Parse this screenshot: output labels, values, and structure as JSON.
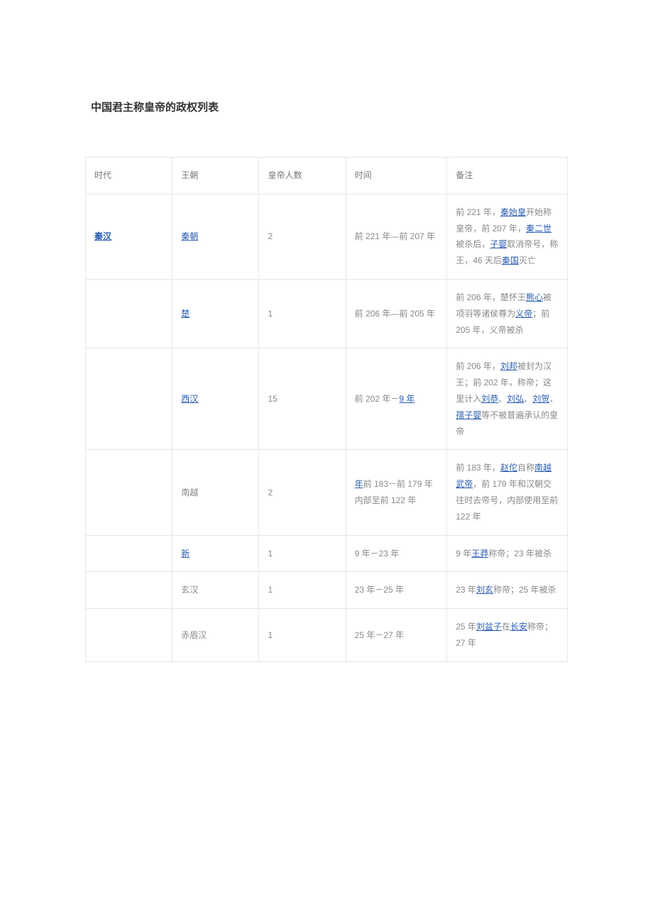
{
  "title": "中国君主称皇帝的政权列表",
  "headers": {
    "era": "时代",
    "dynasty": "王朝",
    "count": "皇帝人数",
    "time": "时间",
    "notes": "备注"
  },
  "rows": [
    {
      "era_link": "秦汉",
      "dynasty_link": "秦朝",
      "count": "2",
      "time_parts": [
        {
          "t": "前 221 年—前 207 年"
        }
      ],
      "notes_parts": [
        {
          "t": "前 221 年，"
        },
        {
          "l": "秦始皇"
        },
        {
          "t": "开始称皇帝，前 207 年，"
        },
        {
          "l": "秦二世"
        },
        {
          "t": "被杀后，"
        },
        {
          "l": "子婴"
        },
        {
          "t": "取消帝号，称王，46 天后"
        },
        {
          "l": "秦国"
        },
        {
          "t": "灭亡"
        }
      ]
    },
    {
      "era_link": "",
      "dynasty_link": "楚",
      "count": "1",
      "time_parts": [
        {
          "t": "前 206 年—前 205 年"
        }
      ],
      "notes_parts": [
        {
          "t": "前 206 年，楚怀王"
        },
        {
          "l": "熊心"
        },
        {
          "t": "被项羽等诸侯尊为"
        },
        {
          "l": "义帝"
        },
        {
          "t": "；前 205 年，义帝被杀"
        }
      ]
    },
    {
      "era_link": "",
      "dynasty_link": "西汉",
      "count": "15",
      "time_parts": [
        {
          "t": "前 202 年－"
        },
        {
          "l": "9 年"
        }
      ],
      "notes_parts": [
        {
          "t": "前 206 年，"
        },
        {
          "l": "刘邦"
        },
        {
          "t": "被封为汉王；前 202 年，称帝；这里计入"
        },
        {
          "l": "刘恭"
        },
        {
          "t": "、"
        },
        {
          "l": "刘弘"
        },
        {
          "t": "、"
        },
        {
          "l": "刘贺"
        },
        {
          "t": "、"
        },
        {
          "l": "孺子婴"
        },
        {
          "t": "等不被普遍承认的皇帝"
        }
      ]
    },
    {
      "era_link": "",
      "dynasty_plain": "南越",
      "count": "2",
      "time_parts": [
        {
          "l": "年"
        },
        {
          "t": "前 183－前 179 年"
        },
        {
          "br": true
        },
        {
          "t": "内部至前 122 年"
        }
      ],
      "notes_parts": [
        {
          "t": "前 183 年，"
        },
        {
          "l": "赵佗"
        },
        {
          "t": "自称"
        },
        {
          "l": "南越武帝"
        },
        {
          "t": "，前 179 年和汉朝交往时去帝号，内部使用至前 122 年"
        }
      ]
    },
    {
      "era_link": "",
      "dynasty_link": "新",
      "count": "1",
      "time_parts": [
        {
          "t": "9 年－23 年"
        }
      ],
      "notes_parts": [
        {
          "t": "9 年"
        },
        {
          "l": "王莽"
        },
        {
          "t": "称帝；23 年被杀"
        }
      ]
    },
    {
      "era_link": "",
      "dynasty_plain": "玄汉",
      "count": "1",
      "time_parts": [
        {
          "t": "23 年－25 年"
        }
      ],
      "notes_parts": [
        {
          "t": "23 年"
        },
        {
          "l": "刘玄"
        },
        {
          "t": "称帝；25 年被杀"
        }
      ]
    },
    {
      "era_link": "",
      "dynasty_plain": "赤眉汉",
      "count": "1",
      "time_parts": [
        {
          "t": "25 年－27 年"
        }
      ],
      "notes_parts": [
        {
          "t": "25 年"
        },
        {
          "l": "刘盆子"
        },
        {
          "t": "在"
        },
        {
          "l": "长安"
        },
        {
          "t": "称帝；27 年"
        }
      ]
    }
  ]
}
